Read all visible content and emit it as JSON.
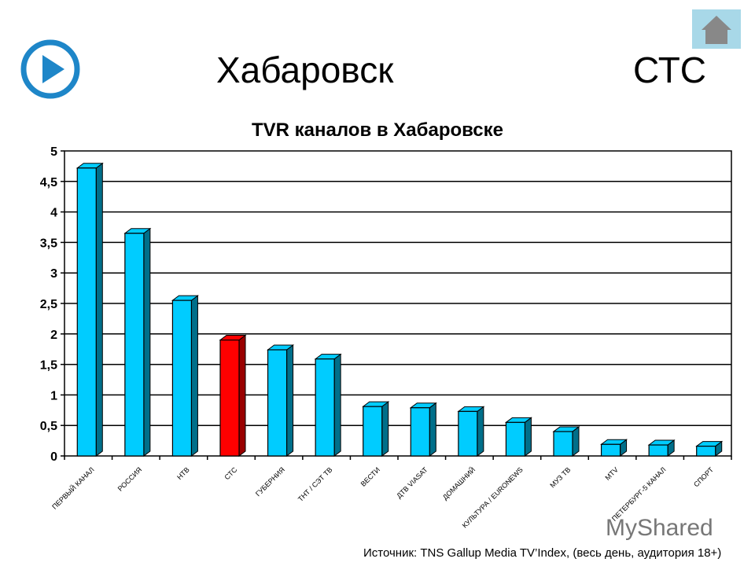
{
  "header": {
    "city": "Хабаровск",
    "channel": "СТС"
  },
  "footer": {
    "source": "Источник: TNS Gallup Media TV’Index,  (весь день, аудитория 18+)",
    "watermark": "MyShared"
  },
  "icons": {
    "play": "play-icon",
    "home": "home-icon"
  },
  "colors": {
    "bar": "#00ccff",
    "highlight": "#ff0000"
  },
  "chart_data": {
    "type": "bar",
    "title": "TVR каналов в Хабаровске",
    "categories": [
      "ПЕРВЫЙ КАНАЛ",
      "РОССИЯ",
      "НТВ",
      "СТС",
      "ГУБЕРНИЯ",
      "ТНТ / СЭТ ТВ",
      "ВЕСТИ",
      "ДТВ VIASAT",
      "ДОМАШНИЙ",
      "КУЛЬТУРА / EURONEWS",
      "МУЗ ТВ",
      "MTV",
      "ПЕТЕРБУРГ-5 КАНАЛ",
      "СПОРТ"
    ],
    "values": [
      4.72,
      3.65,
      2.55,
      1.9,
      1.74,
      1.59,
      0.81,
      0.79,
      0.73,
      0.55,
      0.4,
      0.19,
      0.18,
      0.16
    ],
    "highlight": "СТС",
    "ylim": [
      0,
      5
    ],
    "yticks": [
      "0",
      "0,5",
      "1",
      "1,5",
      "2",
      "2,5",
      "3",
      "3,5",
      "4",
      "4,5",
      "5"
    ],
    "grid": true
  }
}
